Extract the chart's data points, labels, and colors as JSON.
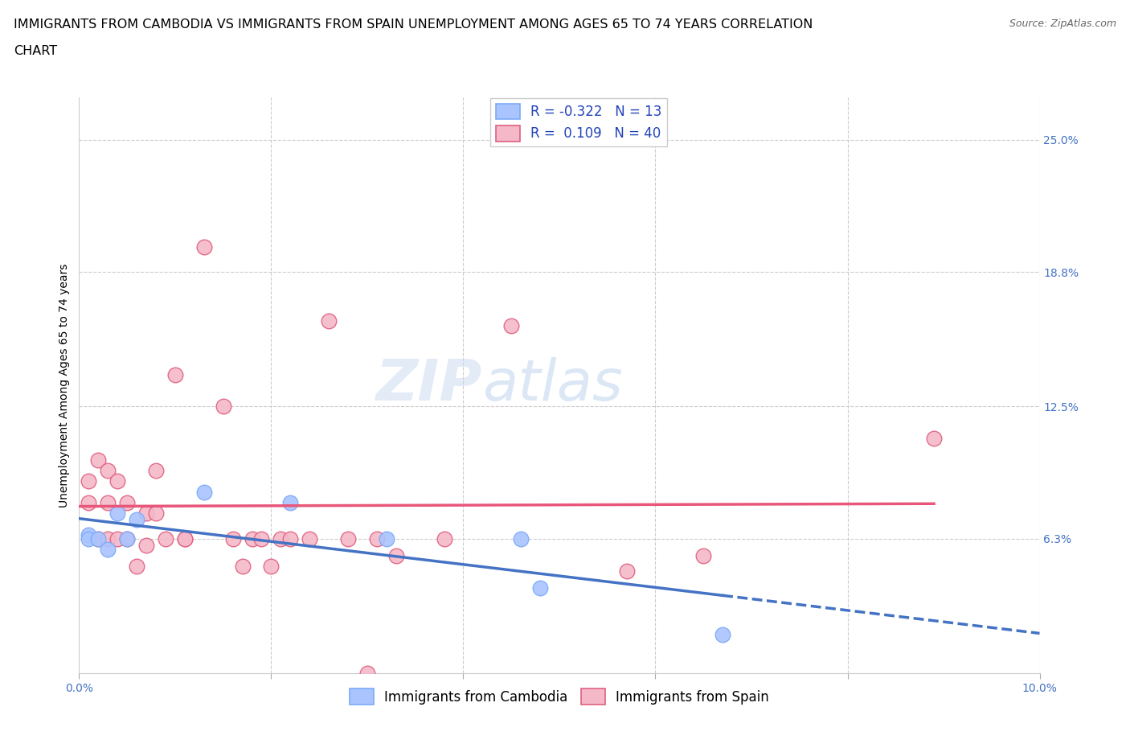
{
  "title_line1": "IMMIGRANTS FROM CAMBODIA VS IMMIGRANTS FROM SPAIN UNEMPLOYMENT AMONG AGES 65 TO 74 YEARS CORRELATION",
  "title_line2": "CHART",
  "source": "Source: ZipAtlas.com",
  "ylabel": "Unemployment Among Ages 65 to 74 years",
  "xlim": [
    0.0,
    0.1
  ],
  "ylim": [
    0.0,
    0.27
  ],
  "xticks": [
    0.0,
    0.02,
    0.04,
    0.06,
    0.08,
    0.1
  ],
  "xticklabels": [
    "0.0%",
    "",
    "",
    "",
    "",
    "10.0%"
  ],
  "ytick_right_values": [
    0.063,
    0.125,
    0.188,
    0.25
  ],
  "ytick_right_labels": [
    "6.3%",
    "12.5%",
    "18.8%",
    "25.0%"
  ],
  "grid_color": "#cccccc",
  "background_color": "#ffffff",
  "cambodia_R": -0.322,
  "cambodia_N": 13,
  "spain_R": 0.109,
  "spain_N": 40,
  "cambodia_color": "#7baaf7",
  "cambodia_color_fill": "#aac4ff",
  "spain_color": "#f4b8c8",
  "spain_color_dark": "#e06080",
  "cambodia_x": [
    0.001,
    0.001,
    0.002,
    0.003,
    0.004,
    0.005,
    0.006,
    0.013,
    0.022,
    0.032,
    0.046,
    0.048,
    0.067
  ],
  "cambodia_y": [
    0.065,
    0.063,
    0.063,
    0.058,
    0.075,
    0.063,
    0.072,
    0.085,
    0.08,
    0.063,
    0.063,
    0.04,
    0.018
  ],
  "spain_x": [
    0.001,
    0.001,
    0.002,
    0.002,
    0.003,
    0.003,
    0.003,
    0.004,
    0.004,
    0.005,
    0.005,
    0.006,
    0.007,
    0.007,
    0.008,
    0.008,
    0.009,
    0.01,
    0.011,
    0.011,
    0.013,
    0.015,
    0.016,
    0.017,
    0.018,
    0.019,
    0.02,
    0.021,
    0.022,
    0.024,
    0.026,
    0.028,
    0.03,
    0.031,
    0.033,
    0.038,
    0.045,
    0.057,
    0.065,
    0.089
  ],
  "spain_y": [
    0.08,
    0.09,
    0.063,
    0.1,
    0.063,
    0.08,
    0.095,
    0.063,
    0.09,
    0.063,
    0.08,
    0.05,
    0.06,
    0.075,
    0.075,
    0.095,
    0.063,
    0.14,
    0.063,
    0.063,
    0.2,
    0.125,
    0.063,
    0.05,
    0.063,
    0.063,
    0.05,
    0.063,
    0.063,
    0.063,
    0.165,
    0.063,
    0.0,
    0.063,
    0.055,
    0.063,
    0.163,
    0.048,
    0.055,
    0.11
  ],
  "blue_line_color": "#4472c4",
  "pink_line_color": "#e8567a",
  "title_fontsize": 11.5,
  "axis_label_fontsize": 10,
  "tick_fontsize": 10,
  "legend_fontsize": 12
}
